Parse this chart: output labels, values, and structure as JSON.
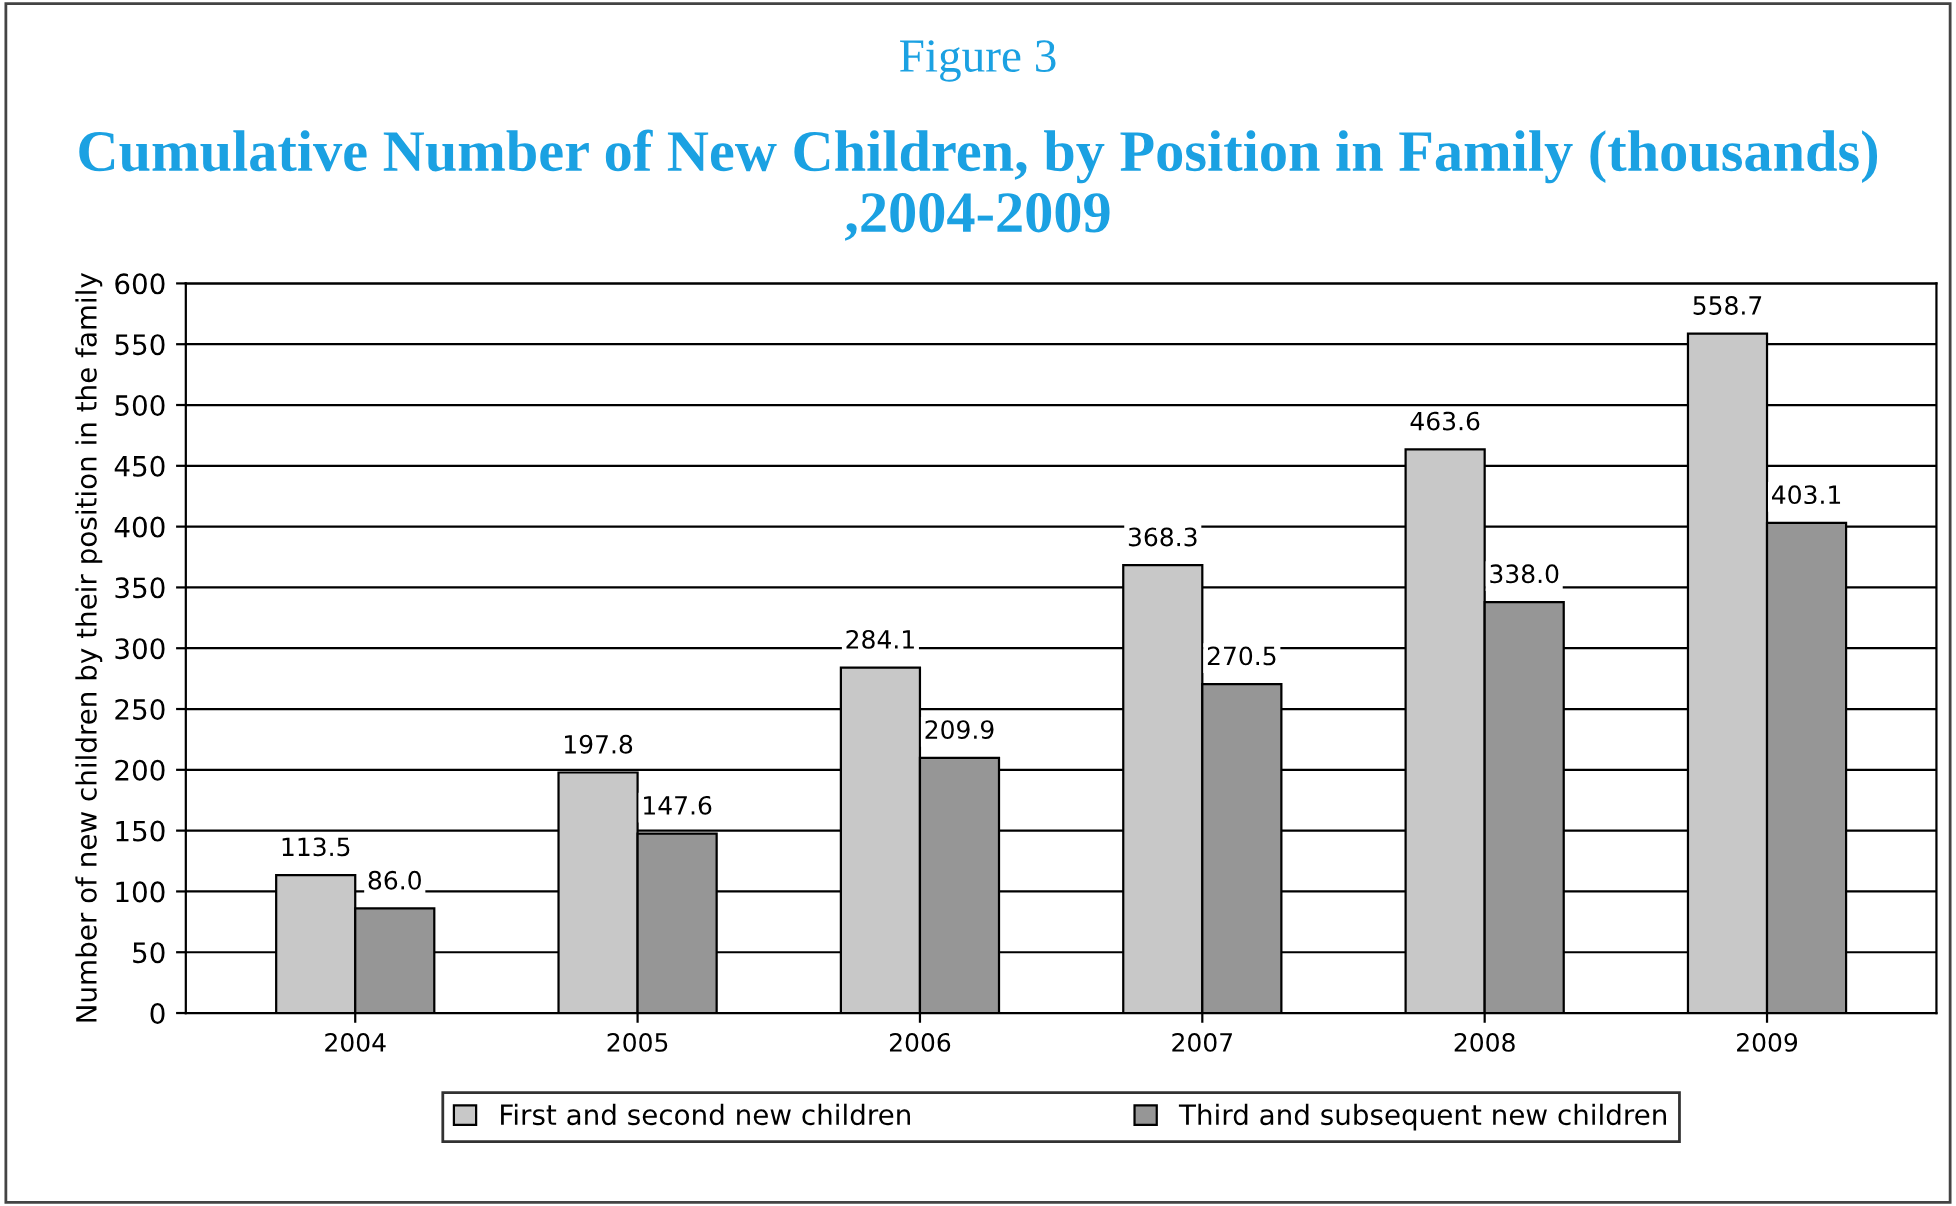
{
  "chart_data": {
    "type": "bar",
    "title": "Figure 3",
    "subtitle": "Cumulative Number of New Children, by Position in Family (thousands) ,2004-2009",
    "ylabel": "Number of new children by their position in the family",
    "categories": [
      "2004",
      "2005",
      "2006",
      "2007",
      "2008",
      "2009"
    ],
    "series": [
      {
        "name": "First and second new children",
        "color": "#c8c8c8",
        "values": [
          113.5,
          197.8,
          284.1,
          368.3,
          463.6,
          558.7
        ],
        "value_labels": [
          "113.5",
          "197.8",
          "284.1",
          "368.3",
          "463.6",
          "558.7"
        ]
      },
      {
        "name": "Third and subsequent new children",
        "color": "#969696",
        "values": [
          86.0,
          147.6,
          209.9,
          270.5,
          338.0,
          403.1
        ],
        "value_labels": [
          "86.0",
          "147.6",
          "209.9",
          "270.5",
          "338.0",
          "403.1"
        ]
      }
    ],
    "ylim": [
      0,
      600
    ],
    "yticks": [
      0,
      50,
      100,
      150,
      200,
      250,
      300,
      350,
      400,
      450,
      500,
      550,
      600
    ],
    "grid": "y",
    "legend": "bottom"
  }
}
